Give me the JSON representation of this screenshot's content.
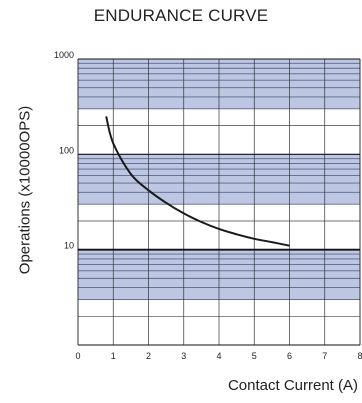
{
  "chart_data": {
    "type": "line",
    "title": "ENDURANCE CURVE",
    "xlabel": "Contact Current (A)",
    "ylabel": "Operations (x10000OPS)",
    "xlim": [
      0,
      8
    ],
    "ylim": [
      1,
      1000
    ],
    "yscale": "log",
    "x_ticks": [
      "0",
      "1",
      "2",
      "3",
      "4",
      "5",
      "6",
      "7",
      "8"
    ],
    "y_ticks": [
      {
        "value": 10,
        "label": "10"
      },
      {
        "value": 100,
        "label": "100"
      },
      {
        "value": 1000,
        "label": "1000"
      }
    ],
    "grid": true,
    "series": [
      {
        "x": [
          0.8,
          1.0,
          1.5,
          2.0,
          2.5,
          3.0,
          3.5,
          4.0,
          4.5,
          5.0,
          5.5,
          6.0
        ],
        "y": [
          250,
          130,
          62,
          42,
          31,
          24,
          19.5,
          16.5,
          14.5,
          13,
          12,
          11
        ]
      }
    ],
    "colors": {
      "curve": "#1a1a1a",
      "band": "#b3bddc",
      "band_line": "#5a6690",
      "grid": "#333333"
    }
  }
}
